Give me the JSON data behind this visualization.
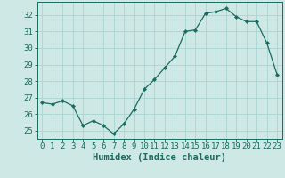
{
  "x": [
    0,
    1,
    2,
    3,
    4,
    5,
    6,
    7,
    8,
    9,
    10,
    11,
    12,
    13,
    14,
    15,
    16,
    17,
    18,
    19,
    20,
    21,
    22,
    23
  ],
  "y": [
    26.7,
    26.6,
    26.8,
    26.5,
    25.3,
    25.6,
    25.3,
    24.8,
    25.4,
    26.3,
    27.5,
    28.1,
    28.8,
    29.5,
    31.0,
    31.1,
    32.1,
    32.2,
    32.4,
    31.9,
    31.6,
    31.6,
    30.3,
    28.4
  ],
  "xlabel": "Humidex (Indice chaleur)",
  "bg_color": "#cde8e5",
  "grid_color": "#aad4d0",
  "line_color": "#1a6b60",
  "marker_color": "#1a6b60",
  "ylim": [
    24.5,
    32.8
  ],
  "xlim": [
    -0.5,
    23.5
  ],
  "yticks": [
    25,
    26,
    27,
    28,
    29,
    30,
    31,
    32
  ],
  "xticks": [
    0,
    1,
    2,
    3,
    4,
    5,
    6,
    7,
    8,
    9,
    10,
    11,
    12,
    13,
    14,
    15,
    16,
    17,
    18,
    19,
    20,
    21,
    22,
    23
  ],
  "xtick_labels": [
    "0",
    "1",
    "2",
    "3",
    "4",
    "5",
    "6",
    "7",
    "8",
    "9",
    "10",
    "11",
    "12",
    "13",
    "14",
    "15",
    "16",
    "17",
    "18",
    "19",
    "20",
    "21",
    "22",
    "23"
  ],
  "tick_fontsize": 6.5,
  "label_fontsize": 7.5
}
